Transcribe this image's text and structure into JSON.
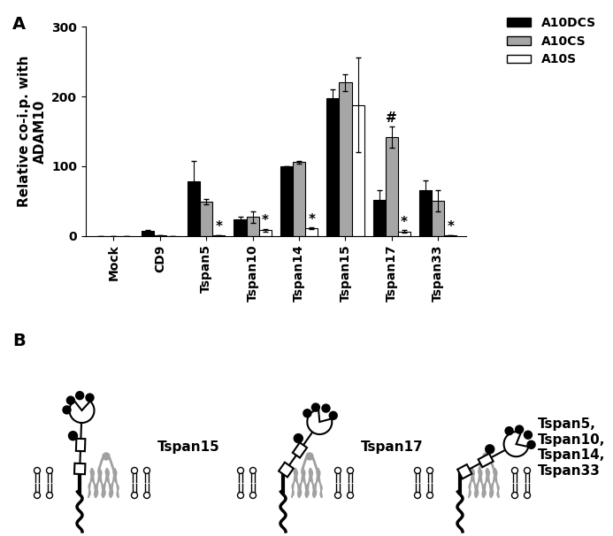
{
  "chart_data": {
    "type": "bar",
    "panel_label": "A",
    "y_label": "Relative co-i.p. with\nADAM10",
    "categories": [
      "Mock",
      "CD9",
      "Tspan5",
      "Tspan10",
      "Tspan14",
      "Tspan15",
      "Tspan17",
      "Tspan33"
    ],
    "series": [
      {
        "name": "A10DCS",
        "color": "#000000",
        "values": [
          0,
          7,
          78,
          24,
          100,
          198,
          51,
          65
        ],
        "errors": [
          0,
          2,
          30,
          3,
          0,
          12,
          15,
          15
        ]
      },
      {
        "name": "A10CS",
        "color": "#a6a6a6",
        "values": [
          0,
          0.5,
          49,
          27,
          106,
          220,
          142,
          50
        ],
        "errors": [
          0,
          0,
          4,
          8,
          2,
          12,
          15,
          15
        ]
      },
      {
        "name": "A10S",
        "color": "#ffffff",
        "values": [
          0,
          0,
          1,
          8,
          11,
          188,
          6,
          1
        ],
        "errors": [
          0,
          0,
          0,
          2,
          1,
          68,
          2,
          0
        ]
      }
    ],
    "annotations": [
      {
        "text": "*",
        "category": "Tspan5",
        "series": "A10S"
      },
      {
        "text": "*",
        "category": "Tspan10",
        "series": "A10S"
      },
      {
        "text": "*",
        "category": "Tspan14",
        "series": "A10S"
      },
      {
        "text": "*",
        "category": "Tspan17",
        "series": "A10S"
      },
      {
        "text": "*",
        "category": "Tspan33",
        "series": "A10S"
      },
      {
        "text": "#",
        "category": "Tspan17",
        "series": "A10CS"
      }
    ],
    "ylim": [
      0,
      300
    ],
    "yticks": [
      0,
      100,
      200,
      300
    ],
    "legend": "upper right"
  },
  "diagram": {
    "panel_label": "B",
    "models": [
      {
        "label": "Tspan15"
      },
      {
        "label": "Tspan17"
      },
      {
        "label": "Tspan5,\nTspan10,\nTspan14,\nTspan33"
      }
    ]
  }
}
